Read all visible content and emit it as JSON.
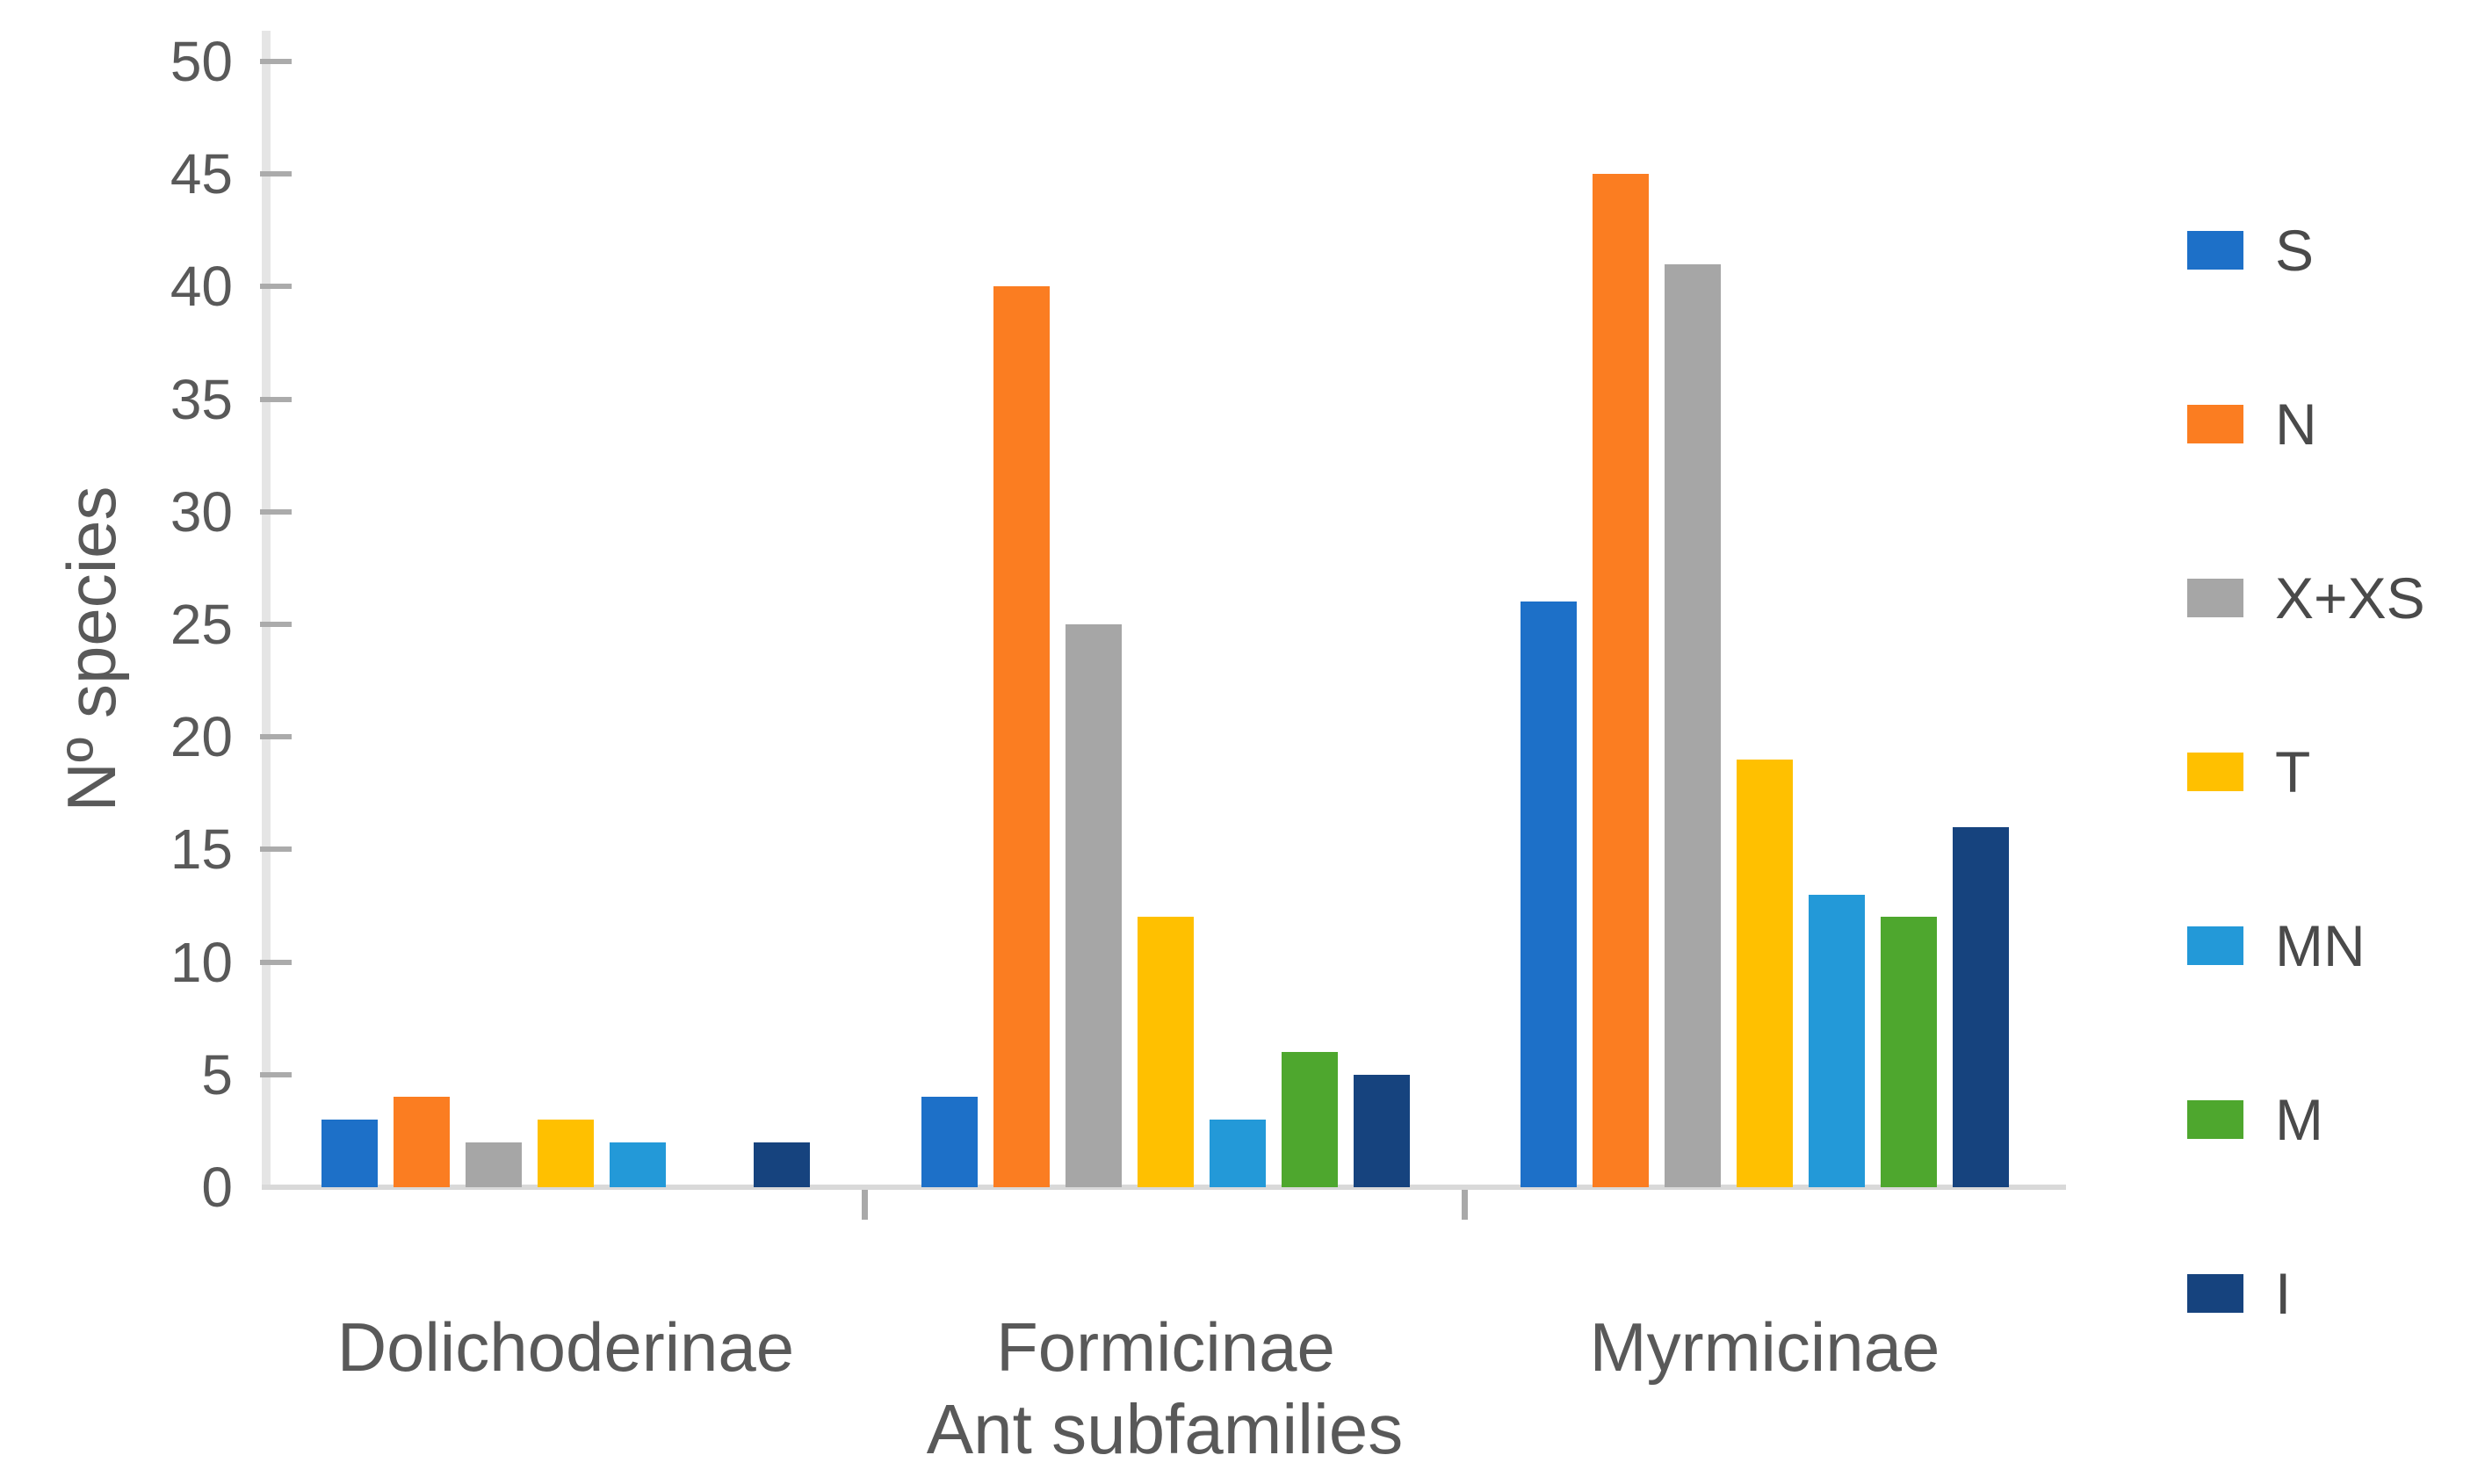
{
  "chart_data": {
    "type": "bar",
    "title": "",
    "xlabel": "Ant subfamilies",
    "ylabel": "Nº species",
    "categories": [
      "Dolichoderinae",
      "Formicinae",
      "Myrmicinae"
    ],
    "series": [
      {
        "name": "S",
        "color": "#1d70c8",
        "values": [
          3,
          4,
          26
        ]
      },
      {
        "name": "N",
        "color": "#fb7d21",
        "values": [
          4,
          40,
          45
        ]
      },
      {
        "name": "X+XS",
        "color": "#a6a6a6",
        "values": [
          2,
          25,
          41
        ]
      },
      {
        "name": "T",
        "color": "#ffc000",
        "values": [
          3,
          12,
          19
        ]
      },
      {
        "name": "MN",
        "color": "#2399d8",
        "values": [
          2,
          3,
          13
        ]
      },
      {
        "name": "M",
        "color": "#4ea72e",
        "values": [
          0,
          6,
          12
        ]
      },
      {
        "name": "I",
        "color": "#16437e",
        "values": [
          2,
          5,
          16
        ]
      }
    ],
    "ylim": [
      0,
      50
    ],
    "yticks": [
      0,
      5,
      10,
      15,
      20,
      25,
      30,
      35,
      40,
      45,
      50
    ],
    "grid": false,
    "legend_position": "right",
    "legend_labels": [
      "S",
      "N",
      "X+XS",
      "T",
      "MN",
      "M",
      "I"
    ]
  },
  "colors": {
    "axis_line": "#d9d9d9",
    "tick_mark": "#ababab",
    "axis_text": "#595959"
  }
}
